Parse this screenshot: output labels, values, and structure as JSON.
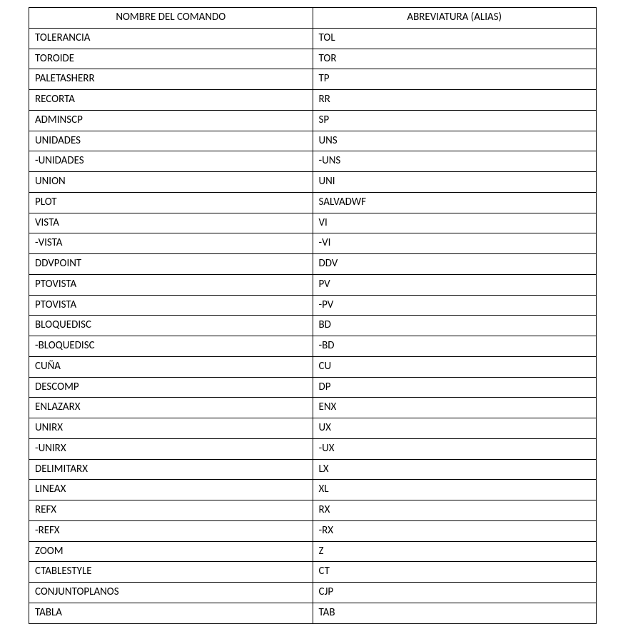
{
  "table": {
    "columns": [
      {
        "key": "nombre",
        "label": "NOMBRE DEL COMANDO"
      },
      {
        "key": "abrev",
        "label": "ABREVIATURA (ALIAS)"
      }
    ],
    "column_widths_pct": [
      50,
      50
    ],
    "border_color": "#000000",
    "font_family": "Calibri",
    "font_size_pt": 11,
    "header_align": "center",
    "cell_align": "left",
    "rows": [
      {
        "nombre": "TOLERANCIA",
        "abrev": "TOL"
      },
      {
        "nombre": "TOROIDE",
        "abrev": "TOR"
      },
      {
        "nombre": "PALETASHERR",
        "abrev": "TP"
      },
      {
        "nombre": "RECORTA",
        "abrev": "RR"
      },
      {
        "nombre": "ADMINSCP",
        "abrev": "SP"
      },
      {
        "nombre": "UNIDADES",
        "abrev": "UNS"
      },
      {
        "nombre": "-UNIDADES",
        "abrev": "-UNS"
      },
      {
        "nombre": "UNION",
        "abrev": "UNI"
      },
      {
        "nombre": "PLOT",
        "abrev": "SALVADWF"
      },
      {
        "nombre": "VISTA",
        "abrev": "VI"
      },
      {
        "nombre": "-VISTA",
        "abrev": "-VI"
      },
      {
        "nombre": "DDVPOINT",
        "abrev": "DDV"
      },
      {
        "nombre": "PTOVISTA",
        "abrev": "PV"
      },
      {
        "nombre": "PTOVISTA",
        "abrev": "-PV"
      },
      {
        "nombre": "BLOQUEDISC",
        "abrev": "BD"
      },
      {
        "nombre": "-BLOQUEDISC",
        "abrev": "-BD"
      },
      {
        "nombre": "CUÑA",
        "abrev": "CU"
      },
      {
        "nombre": "DESCOMP",
        "abrev": "DP"
      },
      {
        "nombre": "ENLAZARX",
        "abrev": "ENX"
      },
      {
        "nombre": "UNIRX",
        "abrev": "UX"
      },
      {
        "nombre": "-UNIRX",
        "abrev": "-UX"
      },
      {
        "nombre": "DELIMITARX",
        "abrev": "LX"
      },
      {
        "nombre": "LINEAX",
        "abrev": "XL"
      },
      {
        "nombre": "REFX",
        "abrev": "RX"
      },
      {
        "nombre": "-REFX",
        "abrev": "-RX"
      },
      {
        "nombre": "ZOOM",
        "abrev": "Z"
      },
      {
        "nombre": "CTABLESTYLE",
        "abrev": "CT"
      },
      {
        "nombre": "CONJUNTOPLANOS",
        "abrev": "CJP"
      },
      {
        "nombre": "TABLA",
        "abrev": "TAB"
      }
    ]
  }
}
